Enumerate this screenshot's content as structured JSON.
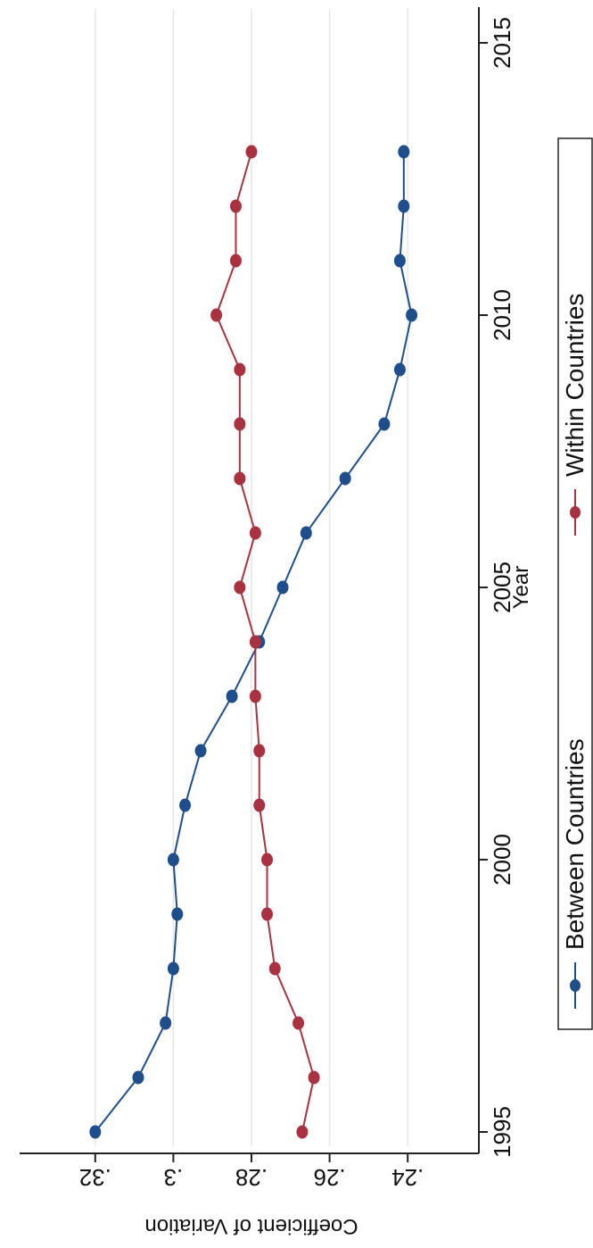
{
  "chart_data": {
    "type": "line",
    "orientation": "rotated-90-clockwise",
    "xlabel": "Year",
    "ylabel": "Coefficient of Variation",
    "xlim": [
      1995,
      2015
    ],
    "ylim": [
      0.23,
      0.33
    ],
    "x_ticks": [
      1995,
      2000,
      2005,
      2010,
      2015
    ],
    "x_tick_labels": [
      "1995",
      "2000",
      "2005",
      "2010",
      "2015"
    ],
    "y_ticks": [
      0.24,
      0.26,
      0.28,
      0.3,
      0.32
    ],
    "y_tick_labels": [
      ".24",
      ".26",
      ".28",
      ".3",
      ".32"
    ],
    "grid": true,
    "legend_position": "bottom",
    "x": [
      1995,
      1996,
      1997,
      1998,
      1999,
      2000,
      2001,
      2002,
      2003,
      2004,
      2005,
      2006,
      2007,
      2008,
      2009,
      2010,
      2011,
      2012,
      2013
    ],
    "series": [
      {
        "name": "Between Countries",
        "color": "#1f4e8c",
        "values": [
          0.32,
          0.309,
          0.302,
          0.3,
          0.299,
          0.3,
          0.297,
          0.293,
          0.285,
          0.278,
          0.272,
          0.266,
          0.256,
          0.246,
          0.242,
          0.239,
          0.242,
          0.241,
          0.241
        ]
      },
      {
        "name": "Within Countries",
        "color": "#a83240",
        "values": [
          0.267,
          0.264,
          0.268,
          0.274,
          0.276,
          0.276,
          0.278,
          0.278,
          0.279,
          0.279,
          0.283,
          0.279,
          0.283,
          0.283,
          0.283,
          0.289,
          0.284,
          0.284,
          0.28
        ]
      }
    ]
  }
}
